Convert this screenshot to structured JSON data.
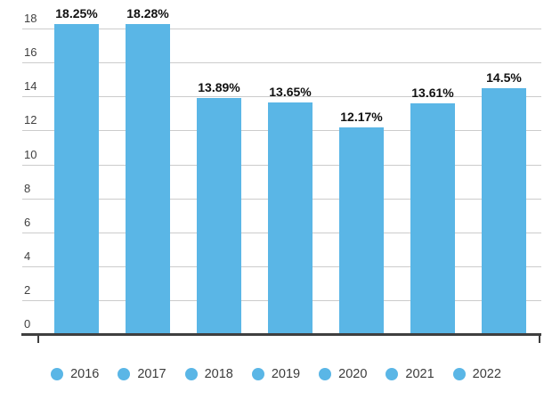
{
  "chart_data": {
    "type": "bar",
    "title": "",
    "xlabel": "",
    "ylabel": "",
    "categories": [
      "2016",
      "2017",
      "2018",
      "2019",
      "2020",
      "2021",
      "2022"
    ],
    "values": [
      18.25,
      18.28,
      13.89,
      13.65,
      12.17,
      13.61,
      14.5
    ],
    "value_labels": [
      "18.25%",
      "18.28%",
      "13.89%",
      "13.65%",
      "12.17%",
      "13.61%",
      "14.5%"
    ],
    "ylim": [
      0,
      18
    ],
    "yticks": [
      "0",
      "2",
      "4",
      "6",
      "8",
      "10",
      "12",
      "14",
      "16",
      "18"
    ],
    "grid": true,
    "legend_position": "bottom",
    "colors": {
      "bar": "#5AB6E6",
      "gridline": "#CCCCCC",
      "axis_line": "#3F3F3F",
      "axis_tick_label": "#404040",
      "bar_value_label": "#111111",
      "legend_text": "#3C3C3C"
    }
  }
}
